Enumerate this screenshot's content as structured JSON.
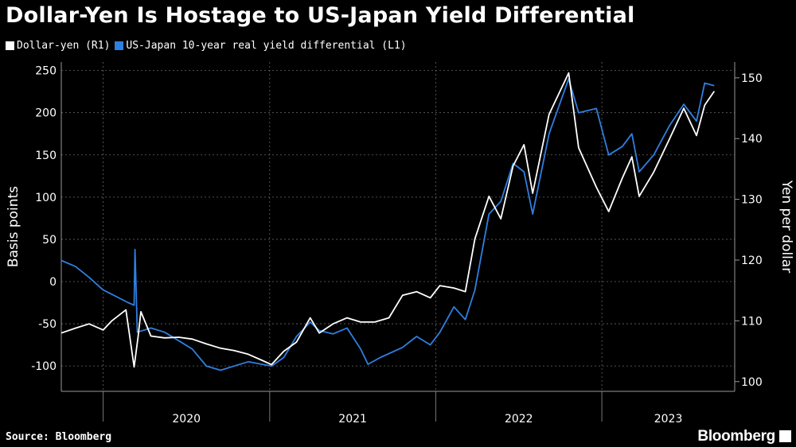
{
  "title": "Dollar-Yen Is Hostage to US-Japan Yield Differential",
  "source": "Source: Bloomberg",
  "brand": "Bloomberg",
  "chart_data": {
    "type": "line",
    "legend_position": "top-left",
    "grid": true,
    "x_ticks": [
      "2020",
      "2021",
      "2022",
      "2023"
    ],
    "ylabel_left": "Basis points",
    "ylabel_right": "Yen per dollar",
    "ylim_left": [
      -130,
      260
    ],
    "ylim_right": [
      98.4,
      152.6
    ],
    "yticks_left": [
      250,
      200,
      150,
      100,
      50,
      0,
      -50,
      -100
    ],
    "yticks_right": [
      150,
      140,
      130,
      120,
      110,
      100
    ],
    "series": [
      {
        "name": "Dollar-yen (R1)",
        "axis": "right",
        "color": "#ffffff",
        "points": [
          [
            "2019-10-01",
            108.0
          ],
          [
            "2019-11-01",
            108.8
          ],
          [
            "2019-12-01",
            109.5
          ],
          [
            "2020-01-01",
            108.5
          ],
          [
            "2020-01-20",
            110.0
          ],
          [
            "2020-02-20",
            111.8
          ],
          [
            "2020-03-09",
            102.4
          ],
          [
            "2020-03-18",
            107.5
          ],
          [
            "2020-03-24",
            111.5
          ],
          [
            "2020-04-15",
            107.5
          ],
          [
            "2020-05-15",
            107.2
          ],
          [
            "2020-06-15",
            107.3
          ],
          [
            "2020-07-15",
            107.0
          ],
          [
            "2020-08-15",
            106.2
          ],
          [
            "2020-09-15",
            105.5
          ],
          [
            "2020-10-15",
            105.1
          ],
          [
            "2020-11-15",
            104.5
          ],
          [
            "2020-12-15",
            103.5
          ],
          [
            "2021-01-05",
            102.8
          ],
          [
            "2021-02-01",
            105.0
          ],
          [
            "2021-03-01",
            106.5
          ],
          [
            "2021-03-31",
            110.5
          ],
          [
            "2021-04-20",
            108.0
          ],
          [
            "2021-05-20",
            109.5
          ],
          [
            "2021-06-20",
            110.5
          ],
          [
            "2021-07-20",
            109.8
          ],
          [
            "2021-08-20",
            109.8
          ],
          [
            "2021-09-20",
            110.5
          ],
          [
            "2021-10-20",
            114.2
          ],
          [
            "2021-11-20",
            114.8
          ],
          [
            "2021-12-20",
            113.8
          ],
          [
            "2022-01-10",
            115.8
          ],
          [
            "2022-02-10",
            115.4
          ],
          [
            "2022-03-07",
            114.8
          ],
          [
            "2022-03-28",
            123.5
          ],
          [
            "2022-04-28",
            130.5
          ],
          [
            "2022-05-24",
            126.8
          ],
          [
            "2022-06-20",
            135.5
          ],
          [
            "2022-07-14",
            139.0
          ],
          [
            "2022-08-02",
            131.0
          ],
          [
            "2022-09-07",
            144.0
          ],
          [
            "2022-10-20",
            150.8
          ],
          [
            "2022-11-11",
            138.5
          ],
          [
            "2022-12-20",
            132.0
          ],
          [
            "2023-01-16",
            128.0
          ],
          [
            "2023-02-15",
            133.5
          ],
          [
            "2023-03-08",
            137.0
          ],
          [
            "2023-03-24",
            130.5
          ],
          [
            "2023-04-25",
            134.5
          ],
          [
            "2023-05-30",
            140.0
          ],
          [
            "2023-06-30",
            145.0
          ],
          [
            "2023-07-28",
            140.5
          ],
          [
            "2023-08-15",
            145.5
          ],
          [
            "2023-09-05",
            147.8
          ]
        ]
      },
      {
        "name": "US-Japan 10-year real yield differential (L1)",
        "axis": "left",
        "color": "#2f7fe0",
        "points": [
          [
            "2019-10-01",
            25
          ],
          [
            "2019-11-01",
            18
          ],
          [
            "2019-12-01",
            5
          ],
          [
            "2020-01-01",
            -10
          ],
          [
            "2020-01-20",
            -15
          ],
          [
            "2020-02-25",
            -25
          ],
          [
            "2020-03-09",
            -28
          ],
          [
            "2020-03-11",
            38
          ],
          [
            "2020-03-16",
            -60
          ],
          [
            "2020-04-15",
            -55
          ],
          [
            "2020-05-15",
            -60
          ],
          [
            "2020-06-15",
            -70
          ],
          [
            "2020-07-15",
            -80
          ],
          [
            "2020-08-15",
            -100
          ],
          [
            "2020-09-15",
            -105
          ],
          [
            "2020-10-15",
            -100
          ],
          [
            "2020-11-15",
            -95
          ],
          [
            "2020-12-15",
            -98
          ],
          [
            "2021-01-05",
            -100
          ],
          [
            "2021-02-01",
            -90
          ],
          [
            "2021-03-01",
            -65
          ],
          [
            "2021-03-31",
            -48
          ],
          [
            "2021-04-20",
            -58
          ],
          [
            "2021-05-20",
            -62
          ],
          [
            "2021-06-20",
            -55
          ],
          [
            "2021-07-20",
            -80
          ],
          [
            "2021-08-05",
            -98
          ],
          [
            "2021-09-01",
            -90
          ],
          [
            "2021-10-20",
            -78
          ],
          [
            "2021-11-20",
            -65
          ],
          [
            "2021-12-20",
            -75
          ],
          [
            "2022-01-10",
            -60
          ],
          [
            "2022-02-10",
            -30
          ],
          [
            "2022-03-07",
            -45
          ],
          [
            "2022-03-28",
            -10
          ],
          [
            "2022-04-28",
            80
          ],
          [
            "2022-05-24",
            95
          ],
          [
            "2022-06-20",
            140
          ],
          [
            "2022-07-14",
            130
          ],
          [
            "2022-08-02",
            80
          ],
          [
            "2022-09-07",
            175
          ],
          [
            "2022-10-20",
            240
          ],
          [
            "2022-11-11",
            200
          ],
          [
            "2022-12-20",
            205
          ],
          [
            "2023-01-16",
            150
          ],
          [
            "2023-02-15",
            160
          ],
          [
            "2023-03-08",
            175
          ],
          [
            "2023-03-24",
            130
          ],
          [
            "2023-04-25",
            150
          ],
          [
            "2023-05-30",
            185
          ],
          [
            "2023-06-30",
            210
          ],
          [
            "2023-07-28",
            190
          ],
          [
            "2023-08-15",
            235
          ],
          [
            "2023-09-05",
            232
          ]
        ]
      }
    ]
  }
}
